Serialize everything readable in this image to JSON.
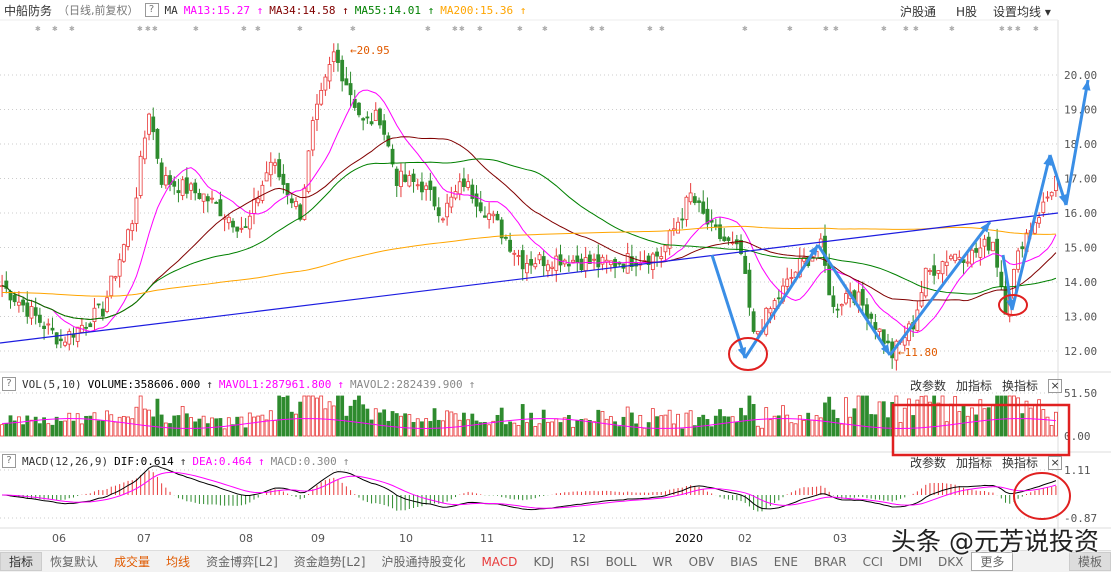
{
  "header": {
    "stock": "中船防务",
    "period": "（日线,前复权）",
    "help": "?",
    "ma_label": "MA",
    "ma": [
      {
        "text": "MA13:15.27",
        "color": "#ff00ff"
      },
      {
        "text": "MA34:14.58",
        "color": "#800000"
      },
      {
        "text": "MA55:14.01",
        "color": "#008000"
      },
      {
        "text": "MA200:15.36",
        "color": "#ffa500"
      }
    ],
    "arrow": "↑",
    "right": [
      "沪股通",
      "H股",
      "设置均线 ▾"
    ]
  },
  "price_axis": [
    "20.00",
    "19.00",
    "18.00",
    "17.00",
    "16.00",
    "15.00",
    "14.00",
    "13.00",
    "12.00"
  ],
  "annotations": {
    "high": "20.95",
    "low": "11.80"
  },
  "volume": {
    "title": "VOL(5,10)",
    "volume": "VOLUME:358606.000",
    "mavol1": "MAVOL1:287961.800",
    "mavol2": "MAVOL2:282439.900",
    "axis": [
      "51.50",
      "0.00"
    ]
  },
  "macd": {
    "title": "MACD(12,26,9)",
    "dif": "DIF:0.614",
    "dea": "DEA:0.464",
    "macd": "MACD:0.300",
    "axis": [
      "1.11",
      "-0.87"
    ]
  },
  "ops": [
    "改参数",
    "加指标",
    "换指标",
    "×"
  ],
  "months": [
    "06",
    "07",
    "08",
    "09",
    "10",
    "11",
    "12",
    "2020",
    "02",
    "03"
  ],
  "tabs": [
    "指标",
    "恢复默认",
    "成交量",
    "均线",
    "资金博弈[L2]",
    "资金趋势[L2]",
    "沪股通持股变化",
    "MACD",
    "KDJ",
    "RSI",
    "BOLL",
    "WR",
    "OBV",
    "BIAS",
    "ENE",
    "BRAR",
    "CCI",
    "DMI",
    "DKX",
    "更多",
    "模板"
  ],
  "watermark": "头条 @元芳说投资",
  "colors": {
    "up": "#e83a3a",
    "down": "#2e8b2e",
    "annot": "#3a8ee6",
    "circle": "#e02020"
  },
  "chart_data": {
    "type": "candlestick",
    "ylim": [
      11.5,
      20.9
    ],
    "close_path": [
      [
        0,
        13.9
      ],
      [
        14,
        12.3
      ],
      [
        24,
        13.2
      ],
      [
        31,
        15.8
      ],
      [
        35,
        19.0
      ],
      [
        38,
        17.0
      ],
      [
        48,
        16.5
      ],
      [
        58,
        15.5
      ],
      [
        64,
        17.5
      ],
      [
        71,
        16.0
      ],
      [
        74,
        18.5
      ],
      [
        79,
        20.6
      ],
      [
        82,
        19.8
      ],
      [
        86,
        18.6
      ],
      [
        90,
        18.8
      ],
      [
        94,
        17.0
      ],
      [
        100,
        16.8
      ],
      [
        105,
        16.0
      ],
      [
        110,
        16.9
      ],
      [
        117,
        15.8
      ],
      [
        124,
        14.6
      ],
      [
        133,
        14.7
      ],
      [
        143,
        14.5
      ],
      [
        152,
        14.7
      ],
      [
        157,
        14.8
      ],
      [
        164,
        16.5
      ],
      [
        169,
        15.5
      ],
      [
        176,
        14.8
      ],
      [
        179,
        12.4
      ],
      [
        183,
        13.2
      ],
      [
        190,
        14.5
      ],
      [
        195,
        15.0
      ],
      [
        198,
        13.2
      ],
      [
        202,
        13.8
      ],
      [
        207,
        13.0
      ],
      [
        212,
        11.9
      ],
      [
        217,
        12.8
      ],
      [
        220,
        14.2
      ],
      [
        226,
        14.8
      ],
      [
        231,
        14.8
      ],
      [
        236,
        15.2
      ],
      [
        239,
        13.3
      ],
      [
        243,
        15.2
      ],
      [
        248,
        16.2
      ],
      [
        251,
        17.0
      ]
    ]
  }
}
